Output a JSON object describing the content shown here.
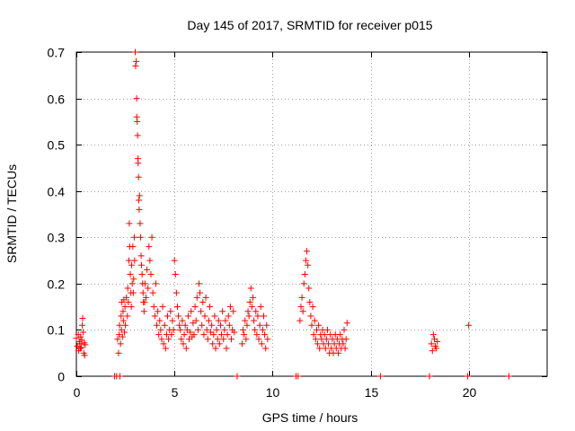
{
  "chart_data": {
    "type": "scatter",
    "title": "Day 145 of 2017, SRMTID for receiver p015",
    "xlabel": "GPS time / hours",
    "ylabel": "SRMTID / TECUs",
    "xlim": [
      0,
      24
    ],
    "ylim": [
      0,
      0.7
    ],
    "x_ticks": [
      0,
      5,
      10,
      15,
      20
    ],
    "x_tick_labels": [
      "0",
      "5",
      "10",
      "15",
      "20"
    ],
    "y_ticks": [
      0,
      0.1,
      0.2,
      0.3,
      0.4,
      0.5,
      0.6,
      0.7
    ],
    "y_tick_labels": [
      "0",
      "0.1",
      "0.2",
      "0.3",
      "0.4",
      "0.5",
      "0.6",
      "0.7"
    ],
    "grid": true,
    "marker": "+",
    "color": "#ff0000",
    "series": [
      {
        "name": "SRMTID",
        "points": [
          [
            0.0,
            0.082
          ],
          [
            0.05,
            0.065
          ],
          [
            0.1,
            0.09
          ],
          [
            0.12,
            0.055
          ],
          [
            0.15,
            0.075
          ],
          [
            0.18,
            0.07
          ],
          [
            0.2,
            0.06
          ],
          [
            0.22,
            0.085
          ],
          [
            0.25,
            0.062
          ],
          [
            0.28,
            0.078
          ],
          [
            0.3,
            0.11
          ],
          [
            0.32,
            0.125
          ],
          [
            0.35,
            0.095
          ],
          [
            0.38,
            0.05
          ],
          [
            0.4,
            0.072
          ],
          [
            0.42,
            0.045
          ],
          [
            0.45,
            0.068
          ],
          [
            1.95,
            0.0
          ],
          [
            2.05,
            0.0
          ],
          [
            2.1,
            0.08
          ],
          [
            2.15,
            0.05
          ],
          [
            2.18,
            0.09
          ],
          [
            2.2,
            0.11
          ],
          [
            2.22,
            0.0
          ],
          [
            2.25,
            0.07
          ],
          [
            2.28,
            0.13
          ],
          [
            2.3,
            0.1
          ],
          [
            2.32,
            0.16
          ],
          [
            2.35,
            0.085
          ],
          [
            2.38,
            0.14
          ],
          [
            2.4,
            0.12
          ],
          [
            2.42,
            0.165
          ],
          [
            2.45,
            0.095
          ],
          [
            2.48,
            0.15
          ],
          [
            2.5,
            0.11
          ],
          [
            2.55,
            0.17
          ],
          [
            2.6,
            0.13
          ],
          [
            2.62,
            0.19
          ],
          [
            2.65,
            0.16
          ],
          [
            2.68,
            0.25
          ],
          [
            2.7,
            0.33
          ],
          [
            2.72,
            0.28
          ],
          [
            2.75,
            0.22
          ],
          [
            2.78,
            0.18
          ],
          [
            2.8,
            0.15
          ],
          [
            2.82,
            0.24
          ],
          [
            2.85,
            0.2
          ],
          [
            2.88,
            0.28
          ],
          [
            2.9,
            0.18
          ],
          [
            2.92,
            0.21
          ],
          [
            2.95,
            0.3
          ],
          [
            2.97,
            0.25
          ],
          [
            3.0,
            0.7
          ],
          [
            3.02,
            0.67
          ],
          [
            3.05,
            0.68
          ],
          [
            3.07,
            0.6
          ],
          [
            3.08,
            0.56
          ],
          [
            3.1,
            0.55
          ],
          [
            3.12,
            0.52
          ],
          [
            3.14,
            0.47
          ],
          [
            3.15,
            0.46
          ],
          [
            3.17,
            0.43
          ],
          [
            3.18,
            0.38
          ],
          [
            3.2,
            0.36
          ],
          [
            3.22,
            0.39
          ],
          [
            3.25,
            0.33
          ],
          [
            3.27,
            0.3
          ],
          [
            3.3,
            0.26
          ],
          [
            3.32,
            0.24
          ],
          [
            3.35,
            0.22
          ],
          [
            3.38,
            0.2
          ],
          [
            3.4,
            0.18
          ],
          [
            3.42,
            0.16
          ],
          [
            3.45,
            0.14
          ],
          [
            3.48,
            0.16
          ],
          [
            3.5,
            0.2
          ],
          [
            3.55,
            0.17
          ],
          [
            3.6,
            0.23
          ],
          [
            3.65,
            0.19
          ],
          [
            3.7,
            0.28
          ],
          [
            3.75,
            0.25
          ],
          [
            3.8,
            0.22
          ],
          [
            3.85,
            0.3
          ],
          [
            3.9,
            0.18
          ],
          [
            3.95,
            0.15
          ],
          [
            4.0,
            0.13
          ],
          [
            4.05,
            0.2
          ],
          [
            4.1,
            0.11
          ],
          [
            4.15,
            0.14
          ],
          [
            4.2,
            0.09
          ],
          [
            4.25,
            0.12
          ],
          [
            4.3,
            0.1
          ],
          [
            4.35,
            0.08
          ],
          [
            4.4,
            0.15
          ],
          [
            4.45,
            0.07
          ],
          [
            4.5,
            0.11
          ],
          [
            4.55,
            0.06
          ],
          [
            4.6,
            0.09
          ],
          [
            4.65,
            0.13
          ],
          [
            4.7,
            0.08
          ],
          [
            4.75,
            0.1
          ],
          [
            4.8,
            0.14
          ],
          [
            4.85,
            0.09
          ],
          [
            4.9,
            0.12
          ],
          [
            4.95,
            0.1
          ],
          [
            5.0,
            0.25
          ],
          [
            5.05,
            0.22
          ],
          [
            5.1,
            0.18
          ],
          [
            5.15,
            0.15
          ],
          [
            5.2,
            0.13
          ],
          [
            5.25,
            0.11
          ],
          [
            5.3,
            0.1
          ],
          [
            5.35,
            0.08
          ],
          [
            5.4,
            0.12
          ],
          [
            5.45,
            0.07
          ],
          [
            5.5,
            0.09
          ],
          [
            5.55,
            0.11
          ],
          [
            5.6,
            0.06
          ],
          [
            5.65,
            0.1
          ],
          [
            5.7,
            0.13
          ],
          [
            5.75,
            0.08
          ],
          [
            5.8,
            0.095
          ],
          [
            5.85,
            0.14
          ],
          [
            5.9,
            0.085
          ],
          [
            5.95,
            0.115
          ],
          [
            6.0,
            0.09
          ],
          [
            6.05,
            0.15
          ],
          [
            6.1,
            0.12
          ],
          [
            6.15,
            0.17
          ],
          [
            6.2,
            0.1
          ],
          [
            6.25,
            0.2
          ],
          [
            6.3,
            0.18
          ],
          [
            6.35,
            0.14
          ],
          [
            6.4,
            0.11
          ],
          [
            6.45,
            0.16
          ],
          [
            6.5,
            0.09
          ],
          [
            6.55,
            0.13
          ],
          [
            6.6,
            0.17
          ],
          [
            6.65,
            0.1
          ],
          [
            6.7,
            0.08
          ],
          [
            6.75,
            0.12
          ],
          [
            6.8,
            0.15
          ],
          [
            6.85,
            0.095
          ],
          [
            6.9,
            0.11
          ],
          [
            6.95,
            0.07
          ],
          [
            7.0,
            0.09
          ],
          [
            7.05,
            0.13
          ],
          [
            7.1,
            0.06
          ],
          [
            7.15,
            0.1
          ],
          [
            7.2,
            0.08
          ],
          [
            7.25,
            0.12
          ],
          [
            7.3,
            0.07
          ],
          [
            7.35,
            0.11
          ],
          [
            7.4,
            0.09
          ],
          [
            7.45,
            0.14
          ],
          [
            7.5,
            0.08
          ],
          [
            7.55,
            0.1
          ],
          [
            7.6,
            0.12
          ],
          [
            7.65,
            0.06
          ],
          [
            7.7,
            0.09
          ],
          [
            7.75,
            0.13
          ],
          [
            7.8,
            0.11
          ],
          [
            7.85,
            0.15
          ],
          [
            7.9,
            0.08
          ],
          [
            7.95,
            0.1
          ],
          [
            8.0,
            0.14
          ],
          [
            8.05,
            0.095
          ],
          [
            8.2,
            0.0
          ],
          [
            8.45,
            0.07
          ],
          [
            8.5,
            0.1
          ],
          [
            8.55,
            0.09
          ],
          [
            8.6,
            0.12
          ],
          [
            8.65,
            0.08
          ],
          [
            8.7,
            0.11
          ],
          [
            8.75,
            0.14
          ],
          [
            8.8,
            0.13
          ],
          [
            8.85,
            0.16
          ],
          [
            8.9,
            0.19
          ],
          [
            8.95,
            0.15
          ],
          [
            9.0,
            0.17
          ],
          [
            9.05,
            0.12
          ],
          [
            9.1,
            0.1
          ],
          [
            9.15,
            0.14
          ],
          [
            9.2,
            0.09
          ],
          [
            9.25,
            0.13
          ],
          [
            9.3,
            0.08
          ],
          [
            9.35,
            0.11
          ],
          [
            9.4,
            0.15
          ],
          [
            9.45,
            0.07
          ],
          [
            9.5,
            0.1
          ],
          [
            9.55,
            0.13
          ],
          [
            9.6,
            0.09
          ],
          [
            9.65,
            0.06
          ],
          [
            9.7,
            0.11
          ],
          [
            9.75,
            0.08
          ],
          [
            11.2,
            0.0
          ],
          [
            11.3,
            0.0
          ],
          [
            11.4,
            0.12
          ],
          [
            11.45,
            0.15
          ],
          [
            11.5,
            0.17
          ],
          [
            11.55,
            0.14
          ],
          [
            11.6,
            0.2
          ],
          [
            11.65,
            0.22
          ],
          [
            11.7,
            0.25
          ],
          [
            11.75,
            0.27
          ],
          [
            11.8,
            0.24
          ],
          [
            11.85,
            0.19
          ],
          [
            11.9,
            0.16
          ],
          [
            11.95,
            0.13
          ],
          [
            12.0,
            0.11
          ],
          [
            12.05,
            0.15
          ],
          [
            12.1,
            0.09
          ],
          [
            12.15,
            0.12
          ],
          [
            12.2,
            0.08
          ],
          [
            12.25,
            0.1
          ],
          [
            12.3,
            0.07
          ],
          [
            12.35,
            0.11
          ],
          [
            12.4,
            0.06
          ],
          [
            12.45,
            0.09
          ],
          [
            12.5,
            0.08
          ],
          [
            12.55,
            0.1
          ],
          [
            12.6,
            0.07
          ],
          [
            12.65,
            0.09
          ],
          [
            12.7,
            0.06
          ],
          [
            12.75,
            0.08
          ],
          [
            12.8,
            0.1
          ],
          [
            12.85,
            0.07
          ],
          [
            12.9,
            0.05
          ],
          [
            12.95,
            0.09
          ],
          [
            13.0,
            0.06
          ],
          [
            13.05,
            0.08
          ],
          [
            13.1,
            0.05
          ],
          [
            13.15,
            0.07
          ],
          [
            13.2,
            0.09
          ],
          [
            13.25,
            0.06
          ],
          [
            13.3,
            0.08
          ],
          [
            13.35,
            0.05
          ],
          [
            13.4,
            0.07
          ],
          [
            13.45,
            0.09
          ],
          [
            13.5,
            0.06
          ],
          [
            13.55,
            0.08
          ],
          [
            13.6,
            0.07
          ],
          [
            13.65,
            0.1
          ],
          [
            13.7,
            0.06
          ],
          [
            13.75,
            0.08
          ],
          [
            13.8,
            0.115
          ],
          [
            15.5,
            0.0
          ],
          [
            18.0,
            0.0
          ],
          [
            18.1,
            0.07
          ],
          [
            18.15,
            0.055
          ],
          [
            18.2,
            0.09
          ],
          [
            18.25,
            0.08
          ],
          [
            18.3,
            0.065
          ],
          [
            18.35,
            0.06
          ],
          [
            18.4,
            0.075
          ],
          [
            19.95,
            0.0
          ],
          [
            20.0,
            0.11
          ],
          [
            22.05,
            0.0
          ]
        ]
      }
    ]
  }
}
